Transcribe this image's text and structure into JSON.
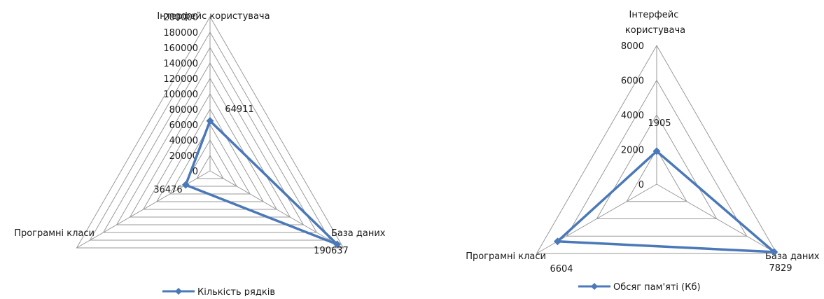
{
  "chart_data": [
    {
      "type": "radar",
      "categories": [
        "Інтерфейс користувача",
        "База даних",
        "Програмні класи"
      ],
      "series": [
        {
          "name": "Кількість рядків",
          "values": [
            64911,
            190637,
            36476
          ]
        }
      ],
      "ylim": [
        0,
        200000
      ],
      "ticks": [
        "0",
        "20000",
        "40000",
        "60000",
        "80000",
        "100000",
        "120000",
        "140000",
        "160000",
        "180000",
        "200000"
      ],
      "data_labels": [
        "64911",
        "190637",
        "36476"
      ],
      "legend": "bottom",
      "grid": true,
      "series_color": "#4a78b8"
    },
    {
      "type": "radar",
      "categories": [
        "Інтерфейс користувача",
        "База даних",
        "Програмні класи"
      ],
      "series": [
        {
          "name": "Обсяг пам'яті (Кб)",
          "values": [
            1905,
            7829,
            6604
          ]
        }
      ],
      "ylim": [
        0,
        8000
      ],
      "ticks": [
        "0",
        "2000",
        "4000",
        "6000",
        "8000"
      ],
      "data_labels": [
        "1905",
        "7829",
        "6604"
      ],
      "legend": "bottom",
      "grid": true,
      "series_color": "#4a78b8"
    }
  ]
}
